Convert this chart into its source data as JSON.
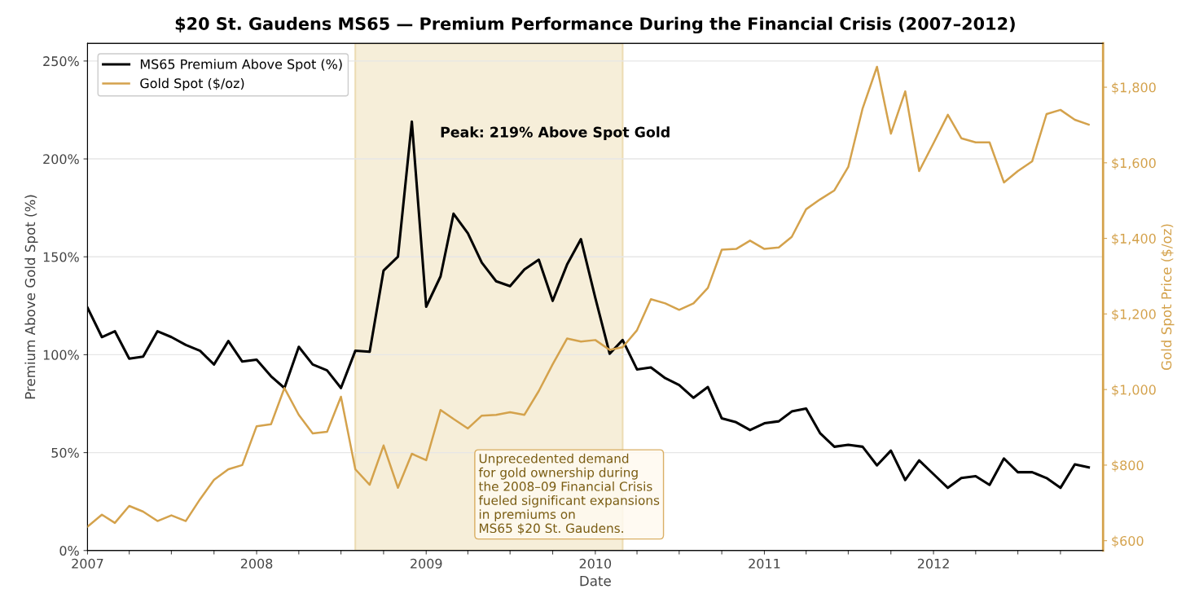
{
  "chart_data": {
    "type": "line",
    "title": "$20 St. Gaudens MS65 — Premium Performance During the Financial Crisis (2007–2012)",
    "xlabel": "Date",
    "ylabel": "Premium Above Gold Spot (%)",
    "y2label": "Gold Spot Price ($/oz)",
    "x": [
      "2007-01",
      "2007-02",
      "2007-03",
      "2007-04",
      "2007-05",
      "2007-06",
      "2007-07",
      "2007-08",
      "2007-09",
      "2007-10",
      "2007-11",
      "2007-12",
      "2008-01",
      "2008-02",
      "2008-03",
      "2008-04",
      "2008-05",
      "2008-06",
      "2008-07",
      "2008-08",
      "2008-09",
      "2008-10",
      "2008-11",
      "2008-12",
      "2009-01",
      "2009-02",
      "2009-03",
      "2009-04",
      "2009-05",
      "2009-06",
      "2009-07",
      "2009-08",
      "2009-09",
      "2009-10",
      "2009-11",
      "2009-12",
      "2010-01",
      "2010-02",
      "2010-03",
      "2010-04",
      "2010-05",
      "2010-06",
      "2010-07",
      "2010-08",
      "2010-09",
      "2010-10",
      "2010-11",
      "2010-12",
      "2011-01",
      "2011-02",
      "2011-03",
      "2011-04",
      "2011-05",
      "2011-06",
      "2011-07",
      "2011-08",
      "2011-09",
      "2011-10",
      "2011-11",
      "2011-12",
      "2012-01",
      "2012-02",
      "2012-03",
      "2012-04",
      "2012-05",
      "2012-06",
      "2012-07",
      "2012-08",
      "2012-09",
      "2012-10",
      "2012-11",
      "2012-12"
    ],
    "series": [
      {
        "name": "MS65 Premium Above Spot (%)",
        "color": "#000000",
        "values": [
          124,
          109,
          112,
          98,
          99,
          112,
          109,
          105,
          102,
          95,
          107,
          96.5,
          97.5,
          89,
          83,
          104,
          95,
          92,
          83,
          102,
          101.5,
          143,
          150,
          219,
          124.5,
          140,
          172,
          162,
          147,
          137.5,
          135,
          143.5,
          148.5,
          127.5,
          146,
          159,
          129,
          100.5,
          107.5,
          92.5,
          93.5,
          88,
          84.5,
          78,
          83.5,
          67.5,
          65.5,
          61.5,
          65,
          66,
          71,
          72.5,
          60,
          53,
          54,
          53,
          43.5,
          51,
          36,
          46,
          39,
          32,
          37,
          38,
          33.5,
          47,
          40,
          40,
          37,
          32,
          44,
          42.5
        ]
      },
      {
        "name": "Gold Spot ($/oz)",
        "color": "#d4a24c",
        "axis": "y2",
        "values": [
          637,
          669,
          647,
          692,
          677,
          652,
          667,
          652,
          710,
          761,
          789,
          800,
          903,
          908,
          1004,
          933,
          884,
          888,
          981,
          789,
          748,
          852,
          740,
          830,
          813,
          946,
          922,
          897,
          931,
          933,
          940,
          933,
          996,
          1067,
          1135,
          1127,
          1131,
          1105,
          1112,
          1157,
          1239,
          1228,
          1211,
          1228,
          1269,
          1370,
          1372,
          1394,
          1372,
          1376,
          1404,
          1477,
          1503,
          1527,
          1589,
          1744,
          1854,
          1677,
          1789,
          1578,
          1652,
          1727,
          1665,
          1654,
          1654,
          1548,
          1578,
          1604,
          1729,
          1740,
          1714,
          1701
        ]
      }
    ],
    "xlim": [
      "2007-01-01",
      "2013-01-01"
    ],
    "xticks": [
      {
        "value": "2007-01-01",
        "label": "2007"
      },
      {
        "value": "2007-04-01",
        "label": null
      },
      {
        "value": "2007-07-01",
        "label": null
      },
      {
        "value": "2007-10-01",
        "label": null
      },
      {
        "value": "2008-01-01",
        "label": "2008"
      },
      {
        "value": "2008-04-01",
        "label": null
      },
      {
        "value": "2008-07-01",
        "label": null
      },
      {
        "value": "2008-10-01",
        "label": null
      },
      {
        "value": "2009-01-01",
        "label": "2009"
      },
      {
        "value": "2009-04-01",
        "label": null
      },
      {
        "value": "2009-07-01",
        "label": null
      },
      {
        "value": "2009-10-01",
        "label": null
      },
      {
        "value": "2010-01-01",
        "label": "2010"
      },
      {
        "value": "2010-04-01",
        "label": null
      },
      {
        "value": "2010-07-01",
        "label": null
      },
      {
        "value": "2010-10-01",
        "label": null
      },
      {
        "value": "2011-01-01",
        "label": "2011"
      },
      {
        "value": "2011-04-01",
        "label": null
      },
      {
        "value": "2011-07-01",
        "label": null
      },
      {
        "value": "2011-10-01",
        "label": null
      },
      {
        "value": "2012-01-01",
        "label": "2012"
      },
      {
        "value": "2012-04-01",
        "label": null
      },
      {
        "value": "2012-07-01",
        "label": null
      },
      {
        "value": "2012-10-01",
        "label": null
      }
    ],
    "ylim": [
      0,
      259
    ],
    "yticks": [
      {
        "value": 0,
        "label": "0%"
      },
      {
        "value": 50,
        "label": "50%"
      },
      {
        "value": 100,
        "label": "100%"
      },
      {
        "value": 150,
        "label": "150%"
      },
      {
        "value": 200,
        "label": "200%"
      },
      {
        "value": 250,
        "label": "250%"
      }
    ],
    "y2lim": [
      574,
      1916
    ],
    "y2ticks": [
      {
        "value": 600,
        "label": "$600"
      },
      {
        "value": 800,
        "label": "$800"
      },
      {
        "value": 1000,
        "label": "$1,000"
      },
      {
        "value": 1200,
        "label": "$1,200"
      },
      {
        "value": 1400,
        "label": "$1,400"
      },
      {
        "value": 1600,
        "label": "$1,600"
      },
      {
        "value": 1800,
        "label": "$1,800"
      }
    ],
    "bands": [
      {
        "axis": "x",
        "from": "2008-08-01",
        "to": "2010-03-01",
        "color": "#f6eed9"
      }
    ],
    "annotations": [
      "Peak: 219% Above Spot Gold",
      "Unprecedented demand\nfor gold ownership during\nthe 2008–09 Financial Crisis\nfueled significant expansions\nin premiums on\nMS65 $20 St. Gaudens."
    ],
    "grid": "y",
    "legend": "top left",
    "marker": "none",
    "line_style": "solid"
  }
}
